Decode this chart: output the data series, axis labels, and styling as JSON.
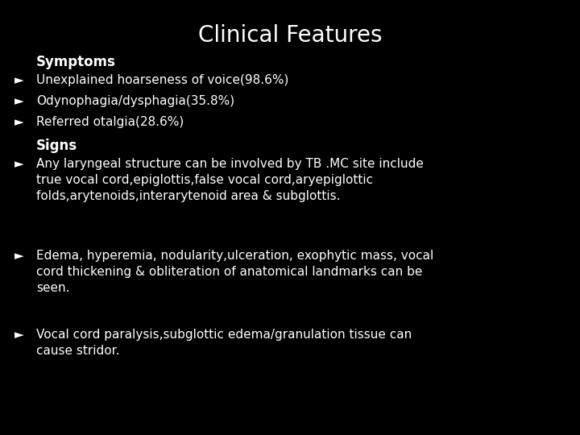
{
  "title": "Clinical Features",
  "background_color": "#000000",
  "text_color": "#ffffff",
  "title_fontsize": 20,
  "title_fontweight": "normal",
  "section_fontsize": 12,
  "body_fontsize": 11,
  "symptoms_label": "Symptoms",
  "signs_label": "Signs",
  "bullet": "►",
  "symptoms": [
    "Unexplained hoarseness of voice(98.6%)",
    "Odynophagia/dysphagia(35.8%)",
    "Referred otalgia(28.6%)"
  ],
  "signs": [
    "Any laryngeal structure can be involved by TB .MC site include\ntrue vocal cord,epiglottis,false vocal cord,aryepiglottic\nfolds,arytenoids,interarytenoid area & subglottis.",
    "Edema, hyperemia, nodularity,ulceration, exophytic mass, vocal\ncord thickening & obliteration of anatomical landmarks can be\nseen.",
    "Vocal cord paralysis,subglottic edema/granulation tissue can\ncause stridor."
  ]
}
